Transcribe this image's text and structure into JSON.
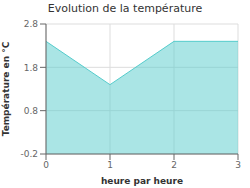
{
  "chart_data": {
    "type": "area",
    "title": "Evolution de la température",
    "xlabel": "heure par heure",
    "ylabel": "Température en °C",
    "x": [
      0,
      1,
      2,
      3
    ],
    "values": [
      2.4,
      1.4,
      2.4,
      2.4
    ],
    "xlim": [
      0,
      3
    ],
    "ylim": [
      -0.2,
      2.8
    ],
    "xticks": [
      0,
      1,
      2,
      3
    ],
    "yticks": [
      -0.2,
      0.8,
      1.8,
      2.8
    ],
    "color": "#55cccc",
    "grid": true
  }
}
